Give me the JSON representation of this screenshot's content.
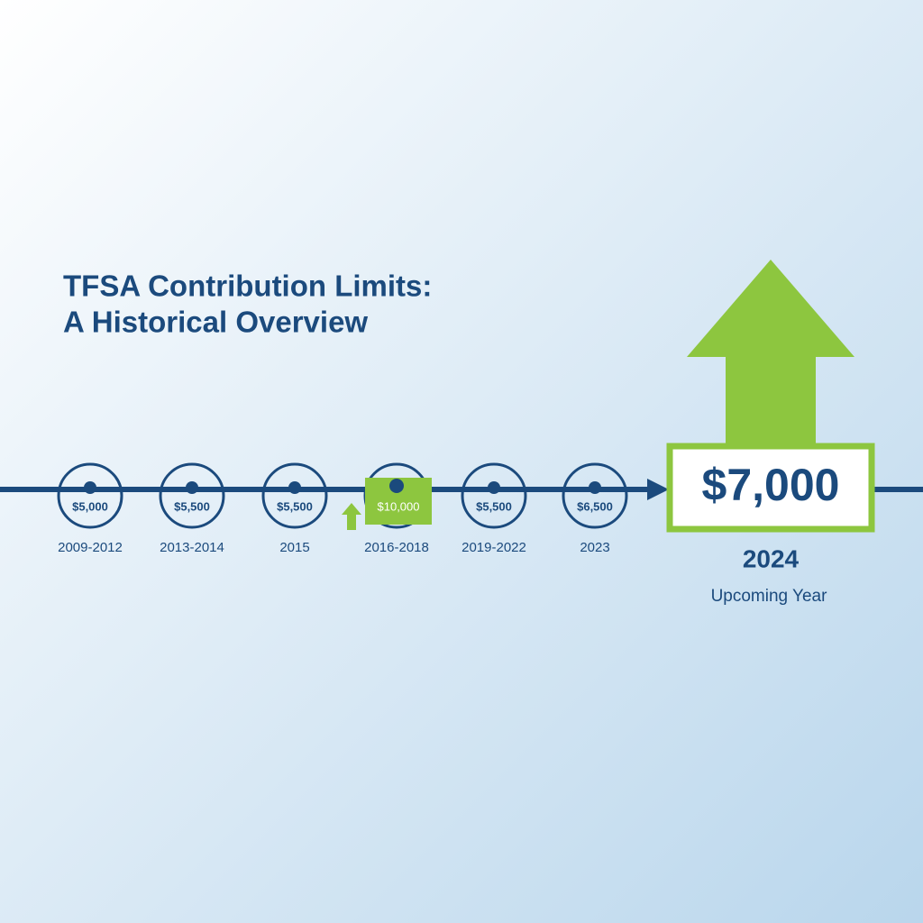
{
  "title": {
    "lines": [
      "TFSA Contribution Limits:",
      "A Historical Overview"
    ]
  },
  "timeline": {
    "items": [
      {
        "amount": "$5,000",
        "period": "2009-2012"
      },
      {
        "amount": "$5,500",
        "period": "2013-2014"
      },
      {
        "amount": "$5,500",
        "period": "2015"
      },
      {
        "amount": "$10,000",
        "period": "2016-2018"
      },
      {
        "amount": "$5,500",
        "period": "2019-2022"
      },
      {
        "amount": "$6,500",
        "period": "2023"
      }
    ],
    "highlight": {
      "amount": "$7,000",
      "year": "2024",
      "note": "Upcoming Year"
    }
  }
}
